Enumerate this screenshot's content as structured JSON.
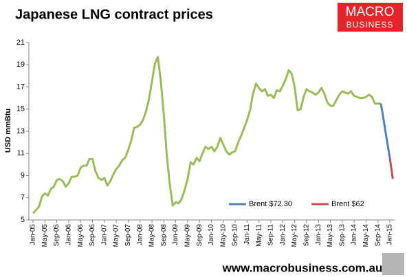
{
  "logo": {
    "line1": "MACRO",
    "line2": "BUSINESS"
  },
  "footer": "www.macrobusiness.com.au",
  "chart_data": {
    "type": "line",
    "title": "Japanese LNG contract prices",
    "y_label": "USD mmBtu",
    "ylim": [
      5,
      21
    ],
    "yticks": [
      5,
      7,
      9,
      11,
      13,
      15,
      17,
      19,
      21
    ],
    "grid": false,
    "legend": "lower right",
    "categories": [
      "Jan-05",
      null,
      null,
      null,
      "May-05",
      null,
      null,
      null,
      "Sep-05",
      null,
      null,
      null,
      "Jan-06",
      null,
      null,
      null,
      "May-06",
      null,
      null,
      null,
      "Sep-06",
      null,
      null,
      null,
      "Jan-07",
      null,
      null,
      null,
      "May-07",
      null,
      null,
      null,
      "Sep-07",
      null,
      null,
      null,
      "Jan-08",
      null,
      null,
      null,
      "May-08",
      null,
      null,
      null,
      "Sep-08",
      null,
      null,
      null,
      "Jan-09",
      null,
      null,
      null,
      "May-09",
      null,
      null,
      null,
      "Sep-09",
      null,
      null,
      null,
      "Jan-10",
      null,
      null,
      null,
      "May-10",
      null,
      null,
      null,
      "Sep-10",
      null,
      null,
      null,
      "Jan-11",
      null,
      null,
      null,
      "May-11",
      null,
      null,
      null,
      "Sep-11",
      null,
      null,
      null,
      "Jan-12",
      null,
      null,
      null,
      "May-12",
      null,
      null,
      null,
      "Sep-12",
      null,
      null,
      null,
      "Jan-13",
      null,
      null,
      null,
      "May-13",
      null,
      null,
      null,
      "Sep-13",
      null,
      null,
      null,
      "Jan-14",
      null,
      null,
      null,
      "May-14",
      null,
      null,
      null,
      "Sep-14",
      null,
      null,
      null,
      "Jan-15",
      null
    ],
    "series": [
      {
        "color": "#9bbb59",
        "values": [
          5.6,
          5.9,
          6.2,
          7.1,
          7.4,
          7.2,
          7.8,
          8.0,
          8.6,
          8.7,
          8.5,
          8.0,
          8.3,
          8.9,
          8.9,
          9.0,
          9.7,
          9.9,
          9.9,
          10.5,
          10.5,
          9.4,
          8.8,
          8.6,
          8.8,
          8.1,
          8.5,
          9.1,
          9.6,
          9.9,
          10.4,
          10.6,
          11.3,
          12.1,
          13.3,
          13.4,
          13.6,
          14.0,
          14.8,
          15.9,
          17.5,
          19.1,
          19.7,
          17.5,
          14.5,
          10.8,
          8.2,
          6.3,
          6.6,
          6.5,
          6.9,
          7.7,
          8.7,
          10.2,
          10.0,
          10.6,
          10.3,
          11.0,
          11.6,
          11.4,
          11.6,
          11.2,
          11.6,
          12.4,
          11.8,
          11.2,
          10.9,
          11.1,
          11.2,
          12.0,
          12.6,
          13.3,
          14.0,
          14.9,
          16.4,
          17.3,
          16.9,
          16.6,
          16.8,
          16.2,
          16.3,
          16.0,
          16.7,
          16.6,
          17.1,
          17.7,
          18.5,
          18.2,
          17.0,
          14.9,
          15.0,
          16.1,
          16.8,
          16.6,
          16.5,
          16.3,
          16.5,
          16.9,
          16.4,
          15.6,
          15.3,
          15.3,
          15.8,
          16.3,
          16.6,
          16.5,
          16.4,
          16.6,
          16.2,
          16.1,
          16.0,
          16.0,
          16.1,
          16.3,
          16.1,
          15.5,
          15.5,
          15.5,
          null,
          null,
          null,
          null
        ]
      },
      {
        "name": "Brent $72.30",
        "color": "#4f81bd",
        "values": [
          null,
          null,
          null,
          null,
          null,
          null,
          null,
          null,
          null,
          null,
          null,
          null,
          null,
          null,
          null,
          null,
          null,
          null,
          null,
          null,
          null,
          null,
          null,
          null,
          null,
          null,
          null,
          null,
          null,
          null,
          null,
          null,
          null,
          null,
          null,
          null,
          null,
          null,
          null,
          null,
          null,
          null,
          null,
          null,
          null,
          null,
          null,
          null,
          null,
          null,
          null,
          null,
          null,
          null,
          null,
          null,
          null,
          null,
          null,
          null,
          null,
          null,
          null,
          null,
          null,
          null,
          null,
          null,
          null,
          null,
          null,
          null,
          null,
          null,
          null,
          null,
          null,
          null,
          null,
          null,
          null,
          null,
          null,
          null,
          null,
          null,
          null,
          null,
          null,
          null,
          null,
          null,
          null,
          null,
          null,
          null,
          null,
          null,
          null,
          null,
          null,
          null,
          null,
          null,
          null,
          null,
          null,
          null,
          null,
          null,
          null,
          null,
          null,
          null,
          null,
          null,
          null,
          15.5,
          13.9,
          12.2,
          10.6,
          null
        ]
      },
      {
        "name": "Brent $62",
        "color": "#c0504d",
        "values": [
          null,
          null,
          null,
          null,
          null,
          null,
          null,
          null,
          null,
          null,
          null,
          null,
          null,
          null,
          null,
          null,
          null,
          null,
          null,
          null,
          null,
          null,
          null,
          null,
          null,
          null,
          null,
          null,
          null,
          null,
          null,
          null,
          null,
          null,
          null,
          null,
          null,
          null,
          null,
          null,
          null,
          null,
          null,
          null,
          null,
          null,
          null,
          null,
          null,
          null,
          null,
          null,
          null,
          null,
          null,
          null,
          null,
          null,
          null,
          null,
          null,
          null,
          null,
          null,
          null,
          null,
          null,
          null,
          null,
          null,
          null,
          null,
          null,
          null,
          null,
          null,
          null,
          null,
          null,
          null,
          null,
          null,
          null,
          null,
          null,
          null,
          null,
          null,
          null,
          null,
          null,
          null,
          null,
          null,
          null,
          null,
          null,
          null,
          null,
          null,
          null,
          null,
          null,
          null,
          null,
          null,
          null,
          null,
          null,
          null,
          null,
          null,
          null,
          null,
          null,
          null,
          null,
          null,
          null,
          null,
          10.6,
          8.7
        ]
      }
    ]
  }
}
